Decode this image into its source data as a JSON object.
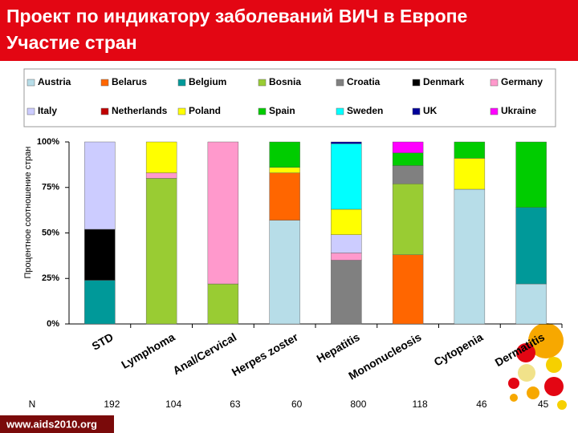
{
  "chart_data": {
    "type": "stacked_bar",
    "title": "Проект по индикатору заболеваний ВИЧ в Европе",
    "subtitle": "Участие стран",
    "y_label": "Процентное соотношение стран",
    "footer": "www.aids2010.org",
    "categories": [
      "STD",
      "Lymphoma",
      "Anal/Cervical",
      "Herpes zoster",
      "Hepatitis",
      "Mononucleosis",
      "Cytopenia",
      "Dermatitis"
    ],
    "n_label": "N",
    "n_values": [
      192,
      104,
      63,
      60,
      800,
      118,
      46,
      45
    ],
    "ylim": [
      0,
      100
    ],
    "yticks": [
      {
        "value": 0,
        "label": "0%"
      },
      {
        "value": 25,
        "label": "25%"
      },
      {
        "value": 50,
        "label": "50%"
      },
      {
        "value": 75,
        "label": "75%"
      },
      {
        "value": 100,
        "label": "100%"
      }
    ],
    "grid": false,
    "series": [
      {
        "name": "Austria",
        "color": "#b7dde8",
        "values": [
          null,
          null,
          null,
          57,
          null,
          null,
          74,
          22
        ]
      },
      {
        "name": "Belarus",
        "color": "#ff6600",
        "values": [
          null,
          null,
          null,
          26,
          null,
          38,
          null,
          null
        ]
      },
      {
        "name": "Belgium",
        "color": "#009999",
        "values": [
          24,
          null,
          null,
          null,
          null,
          null,
          null,
          42
        ]
      },
      {
        "name": "Bosnia",
        "color": "#99cc33",
        "values": [
          null,
          80,
          22,
          null,
          null,
          39,
          null,
          null
        ]
      },
      {
        "name": "Croatia",
        "color": "#808080",
        "values": [
          null,
          null,
          null,
          null,
          35,
          10,
          null,
          null
        ]
      },
      {
        "name": "Denmark",
        "color": "#000000",
        "values": [
          28,
          null,
          null,
          null,
          null,
          null,
          null,
          null
        ]
      },
      {
        "name": "Germany",
        "color": "#ff99cc",
        "values": [
          null,
          3,
          78,
          null,
          4,
          null,
          null,
          null
        ]
      },
      {
        "name": "Italy",
        "color": "#ccccff",
        "values": [
          48,
          null,
          null,
          null,
          10,
          null,
          null,
          null
        ]
      },
      {
        "name": "Netherlands",
        "color": "#c00000",
        "values": [
          null,
          null,
          null,
          null,
          null,
          null,
          null,
          null
        ]
      },
      {
        "name": "Poland",
        "color": "#ffff00",
        "values": [
          null,
          17,
          null,
          3,
          14,
          null,
          17,
          null
        ]
      },
      {
        "name": "Spain",
        "color": "#00cc00",
        "values": [
          null,
          null,
          null,
          14,
          null,
          7,
          9,
          36
        ]
      },
      {
        "name": "Sweden",
        "color": "#00ffff",
        "values": [
          null,
          null,
          null,
          null,
          36,
          null,
          null,
          null
        ]
      },
      {
        "name": "UK",
        "color": "#000099",
        "values": [
          null,
          null,
          null,
          null,
          1,
          null,
          null,
          null
        ]
      },
      {
        "name": "Ukraine",
        "color": "#ff00ff",
        "values": [
          null,
          null,
          null,
          null,
          null,
          6,
          null,
          null
        ]
      }
    ]
  }
}
